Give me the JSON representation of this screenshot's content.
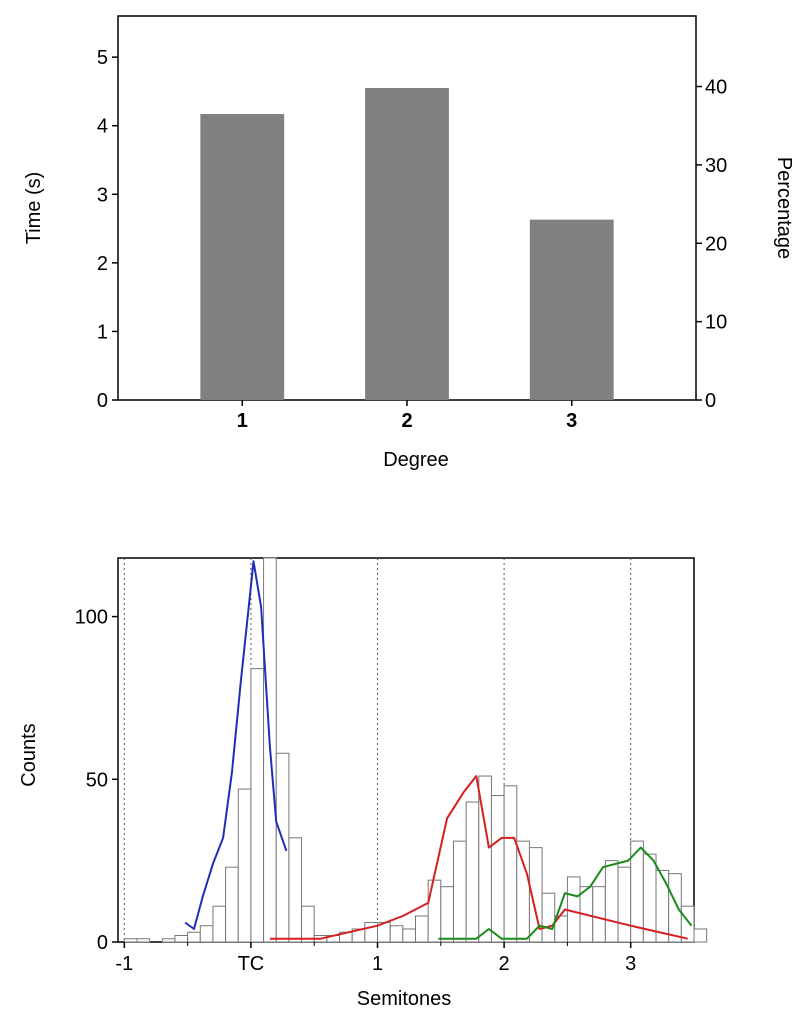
{
  "chart_data": [
    {
      "type": "bar",
      "xlabel": "Degree",
      "ylabel": "Time (s)",
      "y2label": "Percentage",
      "categories": [
        "1",
        "2",
        "3"
      ],
      "values": [
        4.17,
        4.55,
        2.63
      ],
      "ylim": [
        0,
        5.6
      ],
      "yticks": [
        "0",
        "1",
        "2",
        "3",
        "4",
        "5"
      ],
      "y2lim": [
        0,
        49
      ],
      "y2ticks": [
        "0",
        "10",
        "20",
        "30",
        "40"
      ],
      "bar_color": "#808080",
      "grid": false
    },
    {
      "type": "bar",
      "subtype": "histogram-with-lines",
      "xlabel": "Semitones",
      "ylabel": "Counts",
      "xlim": [
        -1.05,
        3.5
      ],
      "ylim": [
        0,
        118
      ],
      "xticks": [
        {
          "value": -1,
          "label": "-1"
        },
        {
          "value": 0,
          "label": "TC"
        },
        {
          "value": 1,
          "label": "1"
        },
        {
          "value": 2,
          "label": "2"
        },
        {
          "value": 3,
          "label": "3"
        }
      ],
      "yticks": [
        {
          "value": 0,
          "label": "0"
        },
        {
          "value": 50,
          "label": "50"
        },
        {
          "value": 100,
          "label": "100"
        }
      ],
      "vlines": [
        -1,
        0,
        1,
        2,
        3
      ],
      "bin_width": 0.1,
      "bin_start": -1.0,
      "counts": [
        1,
        1,
        0,
        1,
        2,
        3,
        5,
        11,
        23,
        47,
        84,
        118,
        58,
        32,
        11,
        2,
        2,
        3,
        4,
        6,
        6,
        5,
        4,
        8,
        19,
        17,
        31,
        43,
        51,
        45,
        48,
        31,
        29,
        15,
        8,
        20,
        17,
        17,
        25,
        23,
        31,
        27,
        22,
        21,
        11,
        4
      ],
      "series": [
        {
          "color": "#1f2fb5",
          "x": [
            -0.52,
            -0.45,
            -0.38,
            -0.3,
            -0.22,
            -0.15,
            -0.08,
            -0.02,
            0.02,
            0.08,
            0.15,
            0.2,
            0.28
          ],
          "y": [
            6,
            4,
            14,
            24,
            32,
            52,
            80,
            102,
            117,
            103,
            60,
            37,
            28
          ]
        },
        {
          "color": "#d62020",
          "x": [
            0.15,
            0.55,
            1.0,
            1.2,
            1.4,
            1.55,
            1.68,
            1.78,
            1.88,
            1.98,
            2.08,
            2.18,
            2.28,
            2.38,
            2.48,
            3.0,
            3.45
          ],
          "y": [
            1,
            1,
            5,
            8,
            12,
            38,
            46,
            51,
            29,
            32,
            32,
            21,
            4,
            5,
            10,
            5,
            1
          ]
        },
        {
          "color": "#1a8c1a",
          "x": [
            1.48,
            1.78,
            1.88,
            1.98,
            2.18,
            2.28,
            2.38,
            2.48,
            2.58,
            2.68,
            2.78,
            2.88,
            2.98,
            3.08,
            3.18,
            3.28,
            3.38,
            3.48
          ],
          "y": [
            1,
            1,
            4,
            1,
            1,
            5,
            4,
            15,
            14,
            17,
            23,
            24,
            25,
            29,
            25,
            18,
            10,
            5
          ]
        }
      ],
      "grid": false
    }
  ]
}
